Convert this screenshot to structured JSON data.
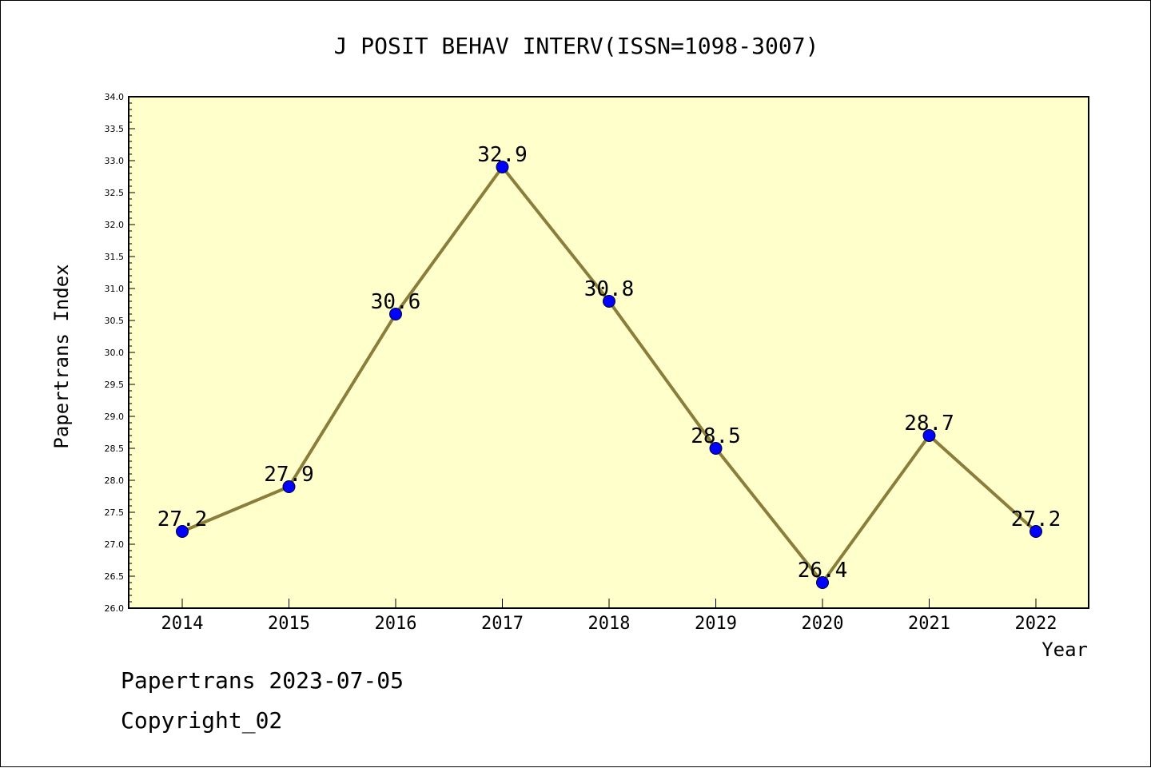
{
  "chart_data": {
    "type": "line",
    "title": "J POSIT BEHAV INTERV(ISSN=1098-3007)",
    "xlabel": "Year",
    "ylabel": "Papertrans Index",
    "x": [
      "2014",
      "2015",
      "2016",
      "2017",
      "2018",
      "2019",
      "2020",
      "2021",
      "2022"
    ],
    "values": [
      27.2,
      27.9,
      30.6,
      32.9,
      30.8,
      28.5,
      26.4,
      28.7,
      27.2
    ],
    "data_labels": [
      "27.2",
      "27.9",
      "30.6",
      "32.9",
      "30.8",
      "28.5",
      "26.4",
      "28.7",
      "27.2"
    ],
    "ylim": [
      26.0,
      34.0
    ],
    "yticks": [
      "26.0",
      "26.5",
      "27.0",
      "27.5",
      "28.0",
      "28.5",
      "29.0",
      "29.5",
      "30.0",
      "30.5",
      "31.0",
      "31.5",
      "32.0",
      "32.5",
      "33.0",
      "33.5",
      "34.0"
    ],
    "grid": false,
    "colors": {
      "plot_background": "#ffffcc",
      "line": "#8b7d3a",
      "marker": "#0000ff"
    }
  },
  "footer": {
    "line1": "Papertrans 2023-07-05",
    "line2": "Copyright_02"
  }
}
